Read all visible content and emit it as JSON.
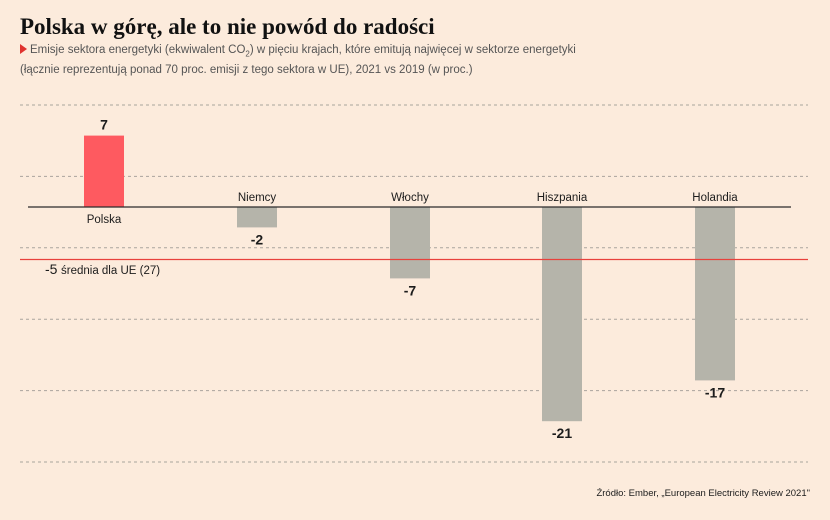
{
  "title": "Polska w górę, ale to nie powód do radości",
  "subtitle": {
    "line1_before": "Emisje sektora energetyki (ekwiwalent CO",
    "line1_sub": "2",
    "line1_after": ") w pięciu krajach, które emitują najwięcej w sektorze energetyki",
    "line2": "(łącznie reprezentują ponad 70 proc. emisji z tego sektora w UE), 2021 vs 2019 (w proc.)"
  },
  "source": "Źródło: Ember, „European Electricity Review 2021\"",
  "colors": {
    "background": "#fcebdc",
    "highlight_bar": "#fe5a60",
    "default_bar": "#b5b4aa",
    "reference_line": "#e8413c",
    "axis": "#2b2b2b",
    "grid": "#a9a49d"
  },
  "chart_data": {
    "type": "bar",
    "categories": [
      "Polska",
      "Niemcy",
      "Włochy",
      "Hiszpania",
      "Holandia"
    ],
    "values": [
      7,
      -2,
      -7,
      -21,
      -17
    ],
    "value_labels": [
      "7",
      "-2",
      "-7",
      "-21",
      "-17"
    ],
    "highlighted_category": "Polska",
    "ylim": [
      -25,
      10
    ],
    "grid": true,
    "reference_line": {
      "value": -5,
      "value_label": "-5",
      "label": "średnia dla UE (27)"
    }
  }
}
